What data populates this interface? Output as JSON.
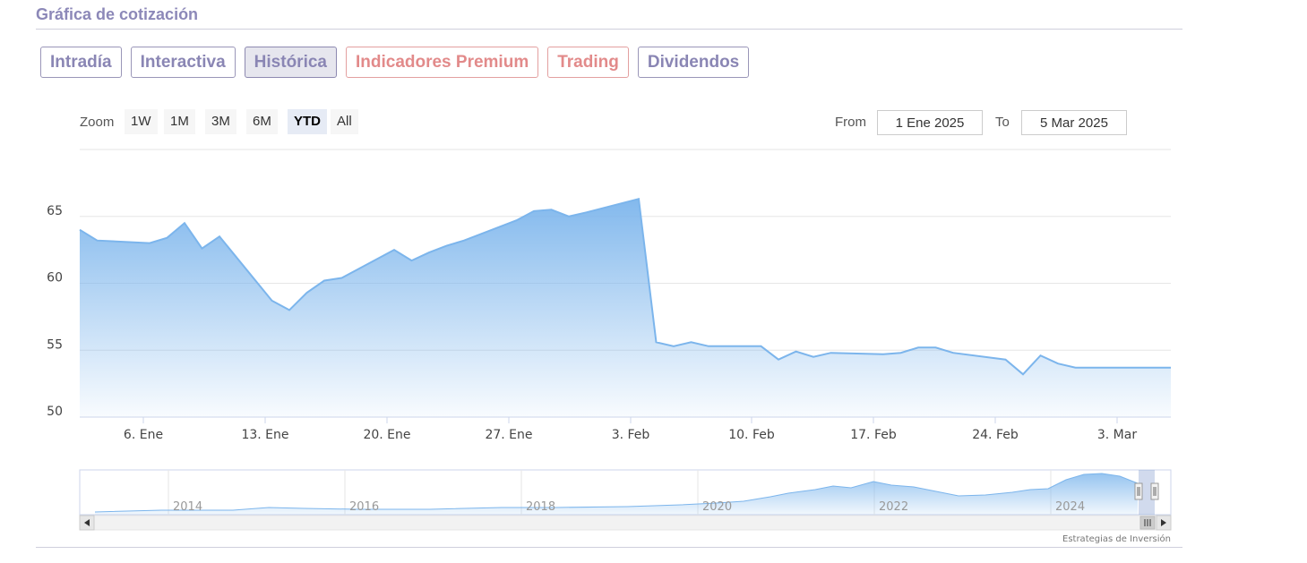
{
  "header": {
    "title": "Gráfica de cotización"
  },
  "tabs": [
    {
      "label": "Intradía",
      "active": false,
      "premium": false
    },
    {
      "label": "Interactiva",
      "active": false,
      "premium": false
    },
    {
      "label": "Histórica",
      "active": true,
      "premium": false
    },
    {
      "label": "Indicadores Premium",
      "active": false,
      "premium": true
    },
    {
      "label": "Trading",
      "active": false,
      "premium": true
    },
    {
      "label": "Dividendos",
      "active": false,
      "premium": false
    }
  ],
  "zoom": {
    "label": "Zoom",
    "options": [
      "1W",
      "1M",
      "3M",
      "6M",
      "YTD",
      "All"
    ],
    "selected": "YTD"
  },
  "range": {
    "from_label": "From",
    "from_value": "1 Ene 2025",
    "to_label": "To",
    "to_value": "5 Mar 2025"
  },
  "colors": {
    "line": "#7cb5ec",
    "accent": "#8a86b4",
    "premium": "#e28a8a"
  },
  "chart_data": {
    "type": "area",
    "x": [
      "2025-01-02",
      "2025-01-03",
      "2025-01-06",
      "2025-01-07",
      "2025-01-08",
      "2025-01-09",
      "2025-01-10",
      "2025-01-13",
      "2025-01-14",
      "2025-01-15",
      "2025-01-16",
      "2025-01-17",
      "2025-01-20",
      "2025-01-21",
      "2025-01-22",
      "2025-01-23",
      "2025-01-24",
      "2025-01-27",
      "2025-01-28",
      "2025-01-29",
      "2025-01-30",
      "2025-01-31",
      "2025-02-03",
      "2025-02-04",
      "2025-02-05",
      "2025-02-06",
      "2025-02-07",
      "2025-02-10",
      "2025-02-11",
      "2025-02-12",
      "2025-02-13",
      "2025-02-14",
      "2025-02-17",
      "2025-02-18",
      "2025-02-19",
      "2025-02-20",
      "2025-02-21",
      "2025-02-24",
      "2025-02-25",
      "2025-02-26",
      "2025-02-27",
      "2025-02-28",
      "2025-03-03",
      "2025-03-04",
      "2025-03-05"
    ],
    "series": [
      {
        "values": [
          64.0,
          63.2,
          63.0,
          63.4,
          64.5,
          62.6,
          63.5,
          58.7,
          58.0,
          59.3,
          60.2,
          60.4,
          62.5,
          61.7,
          62.3,
          62.8,
          63.2,
          64.7,
          65.4,
          65.5,
          65.0,
          65.3,
          66.3,
          55.6,
          55.3,
          55.6,
          55.3,
          55.3,
          54.3,
          54.9,
          54.5,
          54.8,
          54.7,
          54.8,
          55.2,
          55.2,
          54.8,
          54.3,
          53.2,
          54.6,
          54.0,
          53.7,
          null,
          null,
          null
        ]
      }
    ],
    "y_values_note_free": true,
    "x_axis": {
      "ticks": [
        "6. Ene",
        "13. Ene",
        "20. Ene",
        "27. Ene",
        "3. Feb",
        "10. Feb",
        "17. Feb",
        "24. Feb",
        "3. Mar"
      ]
    },
    "y_axis": {
      "ticks": [
        "50",
        "55",
        "60",
        "65"
      ],
      "range": [
        50,
        70
      ]
    },
    "grid": true,
    "navigator": {
      "ticks": [
        "2014",
        "2016",
        "2018",
        "2020",
        "2022",
        "2024"
      ]
    },
    "credits": "Estrategias de Inversión"
  }
}
